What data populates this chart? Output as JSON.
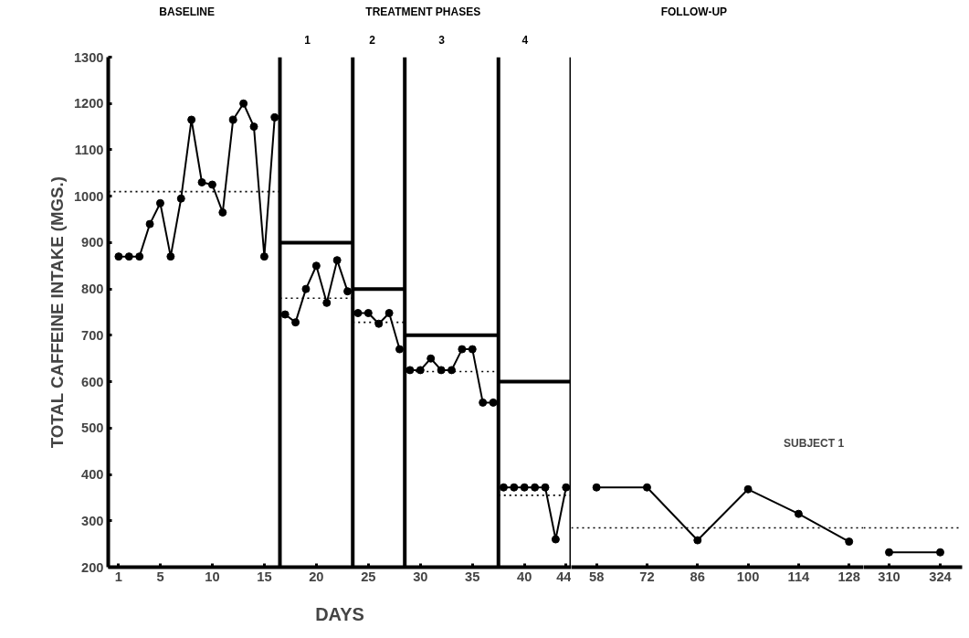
{
  "chart_data": [
    {
      "type": "line",
      "xlabel": "DAYS",
      "ylabel": "TOTAL CAFFEINE INTAKE (MGS.)",
      "xlim": [
        0,
        44.5
      ],
      "ylim": [
        200,
        1300
      ],
      "xticks": [
        1,
        5,
        10,
        15,
        20,
        25,
        30,
        35,
        40,
        44
      ],
      "yticks": [
        200,
        300,
        400,
        500,
        600,
        700,
        800,
        900,
        1000,
        1100,
        1200,
        1300
      ],
      "marker": "circle",
      "line_style": "solid",
      "series": [
        {
          "color": "#000000",
          "x": [
            1,
            2,
            3,
            4,
            5,
            6,
            7,
            8,
            9,
            10,
            11,
            12,
            13,
            14,
            15,
            16
          ],
          "values": [
            870,
            870,
            870,
            940,
            985,
            870,
            995,
            1165,
            1030,
            1025,
            965,
            1165,
            1200,
            1150,
            870,
            1170
          ]
        },
        {
          "color": "#000000",
          "x": [
            17,
            18,
            19,
            20,
            21,
            22,
            23
          ],
          "values": [
            745,
            728,
            800,
            850,
            770,
            862,
            795
          ]
        },
        {
          "color": "#000000",
          "x": [
            24,
            25,
            26,
            27,
            28
          ],
          "values": [
            748,
            748,
            725,
            748,
            670
          ]
        },
        {
          "color": "#000000",
          "x": [
            29,
            30,
            31,
            32,
            33,
            34,
            35,
            36,
            37
          ],
          "values": [
            625,
            625,
            650,
            625,
            625,
            670,
            670,
            555,
            555
          ]
        },
        {
          "color": "#000000",
          "x": [
            38,
            39,
            40,
            41,
            42,
            43,
            44
          ],
          "values": [
            372,
            372,
            372,
            372,
            372,
            260,
            372
          ]
        },
        {
          "color": "#000000",
          "marker": "none",
          "line_style": "dotted",
          "x": [
            0,
            16.5
          ],
          "values": [
            1010,
            1010
          ]
        },
        {
          "color": "#000000",
          "marker": "none",
          "line_style": "dotted",
          "x": [
            16.5,
            23.5
          ],
          "values": [
            780,
            780
          ]
        },
        {
          "color": "#000000",
          "marker": "none",
          "line_style": "dotted",
          "x": [
            23.5,
            28.5
          ],
          "values": [
            728,
            728
          ]
        },
        {
          "color": "#000000",
          "marker": "none",
          "line_style": "dotted",
          "x": [
            28.5,
            37.5
          ],
          "values": [
            622,
            622
          ]
        },
        {
          "color": "#000000",
          "marker": "none",
          "line_style": "dotted",
          "x": [
            37.5,
            44.5
          ],
          "values": [
            355,
            355
          ]
        },
        {
          "color": "#000000",
          "marker": "none",
          "x": [
            16.5,
            23.5
          ],
          "values": [
            900,
            900
          ]
        },
        {
          "color": "#000000",
          "marker": "none",
          "x": [
            23.5,
            28.5
          ],
          "values": [
            800,
            800
          ]
        },
        {
          "color": "#000000",
          "marker": "none",
          "x": [
            28.5,
            37.5
          ],
          "values": [
            700,
            700
          ]
        },
        {
          "color": "#000000",
          "marker": "none",
          "x": [
            37.5,
            44.5
          ],
          "values": [
            600,
            600
          ]
        }
      ],
      "ref_lines": [
        {
          "axis": "x",
          "value": 16.5,
          "color": "#000000"
        },
        {
          "axis": "x",
          "value": 23.5,
          "color": "#000000"
        },
        {
          "axis": "x",
          "value": 28.5,
          "color": "#000000"
        },
        {
          "axis": "x",
          "value": 37.5,
          "color": "#000000"
        },
        {
          "axis": "x",
          "value": 44.5,
          "color": "#000000"
        }
      ],
      "annotations": [
        "BASELINE",
        "TREATMENT PHASES",
        "1",
        "2",
        "3",
        "4"
      ]
    },
    {
      "type": "line",
      "xlim": [
        51,
        132
      ],
      "ylim": [
        200,
        1300
      ],
      "xticks": [
        58,
        72,
        86,
        100,
        114,
        128
      ],
      "tick_labels": "x",
      "marker": "circle",
      "line_style": "solid",
      "series": [
        {
          "color": "#000000",
          "x": [
            58,
            72,
            86,
            100,
            114,
            128
          ],
          "values": [
            372,
            372,
            258,
            368,
            315,
            255
          ]
        }
      ],
      "ref_lines": [
        {
          "axis": "y",
          "value": 285,
          "color": "#000000",
          "line_style": "dotted"
        }
      ],
      "annotations": [
        "FOLLOW-UP",
        "SUBJECT 1"
      ]
    },
    {
      "type": "line",
      "xlim": [
        303,
        330
      ],
      "ylim": [
        200,
        1300
      ],
      "xticks": [
        310,
        324
      ],
      "tick_labels": "x",
      "marker": "circle",
      "line_style": "solid",
      "series": [
        {
          "color": "#000000",
          "x": [
            310,
            324
          ],
          "values": [
            232,
            232
          ]
        }
      ],
      "ref_lines": [
        {
          "axis": "y",
          "value": 285,
          "color": "#000000",
          "line_style": "dotted"
        }
      ]
    }
  ]
}
